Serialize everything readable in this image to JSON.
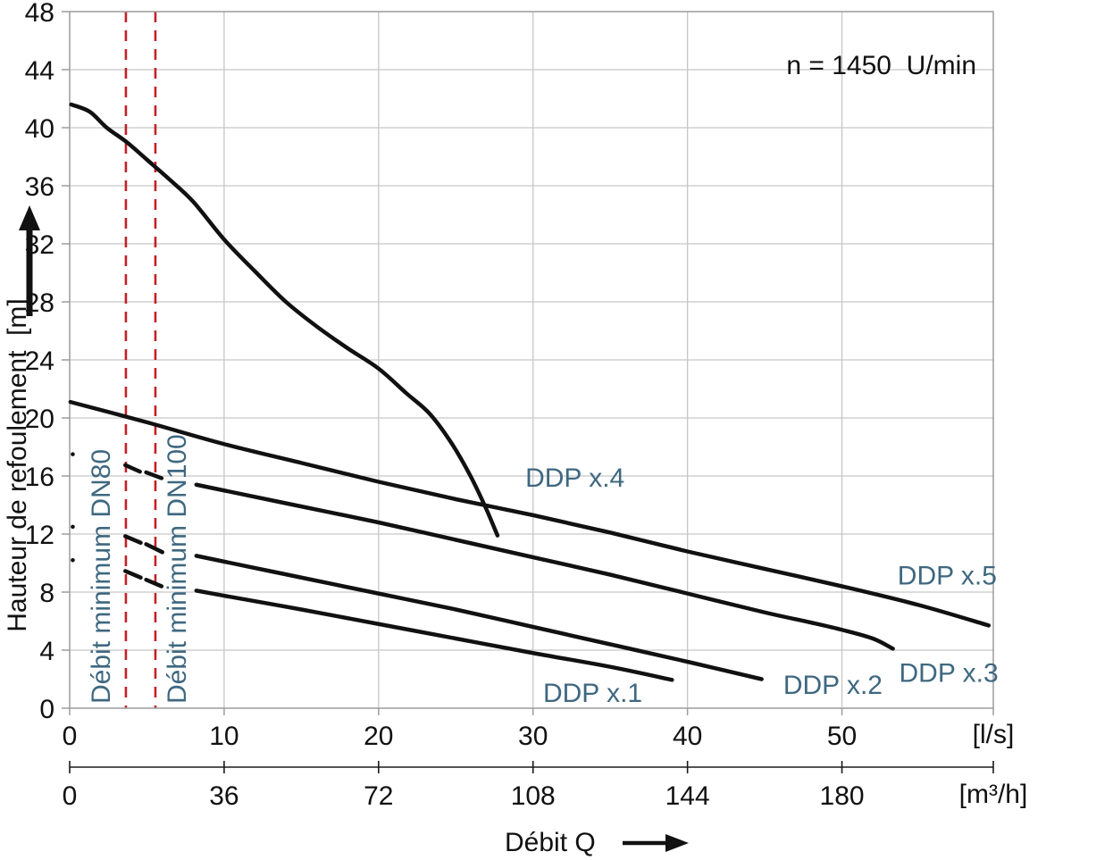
{
  "chart_data": {
    "type": "line",
    "title": "",
    "annotation": "n = 1450  U/min",
    "xlabel": "Débit Q",
    "x_primary": {
      "unit": "[l/s]",
      "ticks": [
        0,
        10,
        20,
        30,
        40,
        50
      ],
      "range": [
        0,
        59.8
      ]
    },
    "x_secondary": {
      "unit": "[m³/h]",
      "ticks": [
        0,
        36,
        72,
        108,
        144,
        180
      ],
      "range": [
        0,
        215.3
      ],
      "conversion_factor_ls_to_m3h": 3.6
    },
    "y": {
      "label": "Hauteur de refoulement  [m]",
      "ticks": [
        48,
        44,
        40,
        36,
        32,
        28,
        24,
        20,
        16,
        12,
        8,
        4,
        0
      ],
      "range": [
        0,
        48
      ]
    },
    "grid": true,
    "legend_position": "end-of-curve",
    "series": [
      {
        "name": "DDP x.4",
        "solid": [
          [
            0.1,
            41.6
          ],
          [
            1.3,
            41.1
          ],
          [
            2.4,
            40.0
          ],
          [
            3.7,
            39.0
          ],
          [
            5.0,
            37.8
          ],
          [
            6.5,
            36.4
          ],
          [
            8.0,
            34.9
          ],
          [
            10.0,
            32.3
          ],
          [
            12.0,
            30.1
          ],
          [
            14.0,
            28.0
          ],
          [
            16.0,
            26.3
          ],
          [
            18.0,
            24.8
          ],
          [
            20.0,
            23.4
          ],
          [
            21.8,
            21.7
          ],
          [
            23.3,
            20.3
          ],
          [
            24.7,
            18.3
          ],
          [
            25.9,
            16.1
          ],
          [
            26.9,
            13.9
          ],
          [
            27.7,
            11.9
          ]
        ],
        "label_anchor": [
          29.5,
          15.95
        ]
      },
      {
        "name": "DDP x.5",
        "solid": [
          [
            0.05,
            21.1
          ],
          [
            5,
            19.7
          ],
          [
            10,
            18.2
          ],
          [
            15,
            16.9
          ],
          [
            20,
            15.6
          ],
          [
            25,
            14.4
          ],
          [
            30,
            13.3
          ],
          [
            35,
            12.1
          ],
          [
            40,
            10.8
          ],
          [
            45,
            9.6
          ],
          [
            50,
            8.4
          ],
          [
            55,
            7.1
          ],
          [
            59.5,
            5.7
          ]
        ],
        "label_anchor": [
          53.6,
          9.2
        ]
      },
      {
        "name": "DDP x.3",
        "dot": [
          0.2,
          17.5
        ],
        "dashes": [
          [
            3.6,
            16.75,
            4.55,
            16.3
          ],
          [
            4.95,
            16.25,
            5.95,
            15.85
          ]
        ],
        "solid": [
          [
            8.2,
            15.4
          ],
          [
            10,
            15.0
          ],
          [
            15,
            13.9
          ],
          [
            20,
            12.8
          ],
          [
            25,
            11.6
          ],
          [
            30,
            10.4
          ],
          [
            35,
            9.2
          ],
          [
            40,
            7.9
          ],
          [
            45,
            6.6
          ],
          [
            48,
            5.9
          ],
          [
            50,
            5.4
          ],
          [
            52,
            4.8
          ],
          [
            53.3,
            4.1
          ]
        ],
        "label_anchor": [
          53.7,
          2.5
        ]
      },
      {
        "name": "DDP x.2",
        "dot": [
          0.2,
          12.5
        ],
        "dashes": [
          [
            3.6,
            11.85,
            4.6,
            11.4
          ],
          [
            4.95,
            11.3,
            6.0,
            10.75
          ]
        ],
        "solid": [
          [
            8.2,
            10.5
          ],
          [
            10,
            10.1
          ],
          [
            15,
            9.0
          ],
          [
            20,
            7.9
          ],
          [
            25,
            6.8
          ],
          [
            30,
            5.6
          ],
          [
            35,
            4.4
          ],
          [
            40,
            3.2
          ],
          [
            44.8,
            2.0
          ]
        ],
        "label_anchor": [
          46.2,
          1.65
        ]
      },
      {
        "name": "DDP x.1",
        "dot": [
          0.2,
          10.2
        ],
        "dashes": [
          [
            3.6,
            9.45,
            4.6,
            9.0
          ],
          [
            4.95,
            8.85,
            5.95,
            8.4
          ]
        ],
        "solid": [
          [
            8.2,
            8.1
          ],
          [
            10,
            7.75
          ],
          [
            15,
            6.8
          ],
          [
            20,
            5.8
          ],
          [
            25,
            4.8
          ],
          [
            30,
            3.8
          ],
          [
            35,
            2.85
          ],
          [
            39,
            1.95
          ]
        ],
        "label_anchor": [
          30.65,
          1.1
        ]
      }
    ],
    "min_flow_limits": [
      {
        "label": "Débit minimum DN80",
        "q_ls": 3.64
      },
      {
        "label": "Débit minimum DN100",
        "q_ls": 5.55
      }
    ]
  },
  "colors": {
    "curve": "#111111",
    "grid": "#c6c6c6",
    "border": "#9c9c9c",
    "red": "#C32026",
    "label_blue": "#3F6880",
    "axis2": "#1a1a1a",
    "text": "#111111"
  }
}
